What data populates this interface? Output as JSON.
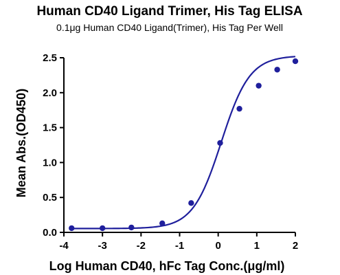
{
  "chart_data": {
    "type": "scatter",
    "title": "Human CD40 Ligand Trimer, His Tag ELISA",
    "subtitle": "0.1μg Human CD40 Ligand(Trimer), His Tag Per Well",
    "xlabel": "Log Human CD40, hFc Tag Conc.(μg/ml)",
    "ylabel": "Mean Abs.(OD450)",
    "xlim": [
      -4,
      2
    ],
    "ylim": [
      0.0,
      2.5
    ],
    "xticks": [
      -4,
      -3,
      -2,
      -1,
      0,
      1,
      2
    ],
    "yticks": [
      0.0,
      0.5,
      1.0,
      1.5,
      2.0,
      2.5
    ],
    "xtick_labels": [
      "-4",
      "-3",
      "-2",
      "-1",
      "0",
      "1",
      "2"
    ],
    "ytick_labels": [
      "0.0",
      "0.5",
      "1.0",
      "1.5",
      "2.0",
      "2.5"
    ],
    "grid": false,
    "series": [
      {
        "x": [
          -3.8,
          -3.0,
          -2.25,
          -1.45,
          -0.7,
          0.05,
          0.55,
          1.05,
          1.53,
          2.0
        ],
        "y": [
          0.06,
          0.06,
          0.07,
          0.13,
          0.42,
          1.28,
          1.77,
          2.1,
          2.33,
          2.45
        ],
        "fit_curve": "4PL",
        "color": "#1f1f9c"
      }
    ]
  }
}
